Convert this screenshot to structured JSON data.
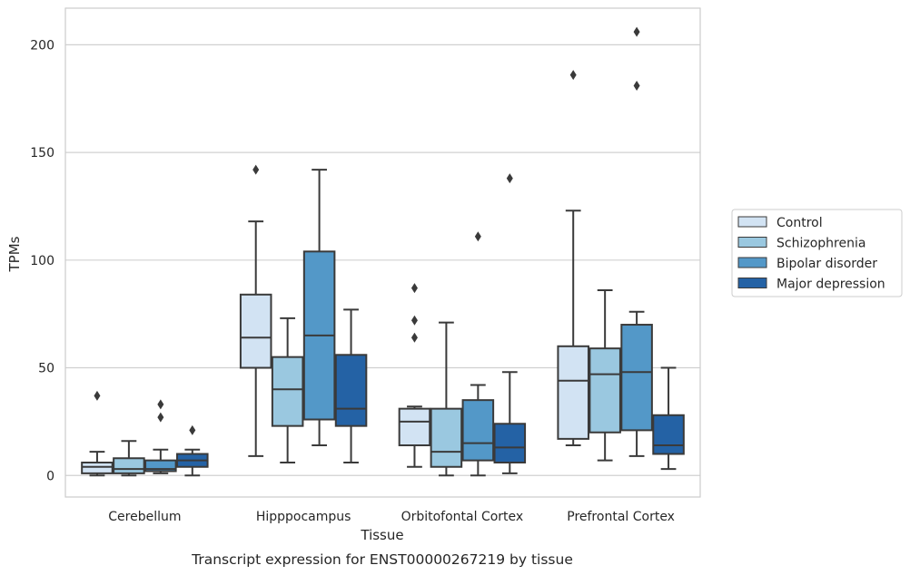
{
  "chart_data": {
    "type": "boxplot",
    "title": "",
    "caption": "Transcript expression for ENST00000267219 by tissue",
    "xlabel": "Tissue",
    "ylabel": "TPMs",
    "ylim": [
      -10,
      217
    ],
    "yticks": [
      0,
      50,
      100,
      150,
      200
    ],
    "grid": "horizontal",
    "legend_position": "right",
    "categories": [
      "Cerebellum",
      "Hipppocampus",
      "Orbitofontal Cortex",
      "Prefrontal Cortex"
    ],
    "series": [
      {
        "name": "Control",
        "color": "#d2e3f3",
        "boxes": [
          {
            "whisker_low": 0,
            "q1": 1,
            "median": 4,
            "q3": 6,
            "whisker_high": 11,
            "outliers": [
              37
            ]
          },
          {
            "whisker_low": 9,
            "q1": 50,
            "median": 64,
            "q3": 84,
            "whisker_high": 118,
            "outliers": [
              142
            ]
          },
          {
            "whisker_low": 4,
            "q1": 14,
            "median": 25,
            "q3": 31,
            "whisker_high": 32,
            "outliers": [
              87,
              72,
              64
            ]
          },
          {
            "whisker_low": 14,
            "q1": 17,
            "median": 44,
            "q3": 60,
            "whisker_high": 123,
            "outliers": [
              186
            ]
          }
        ]
      },
      {
        "name": "Schizophrenia",
        "color": "#9ac8e0",
        "boxes": [
          {
            "whisker_low": 0,
            "q1": 1,
            "median": 3,
            "q3": 8,
            "whisker_high": 16,
            "outliers": []
          },
          {
            "whisker_low": 6,
            "q1": 23,
            "median": 40,
            "q3": 55,
            "whisker_high": 73,
            "outliers": []
          },
          {
            "whisker_low": 0,
            "q1": 4,
            "median": 11,
            "q3": 31,
            "whisker_high": 71,
            "outliers": []
          },
          {
            "whisker_low": 7,
            "q1": 20,
            "median": 47,
            "q3": 59,
            "whisker_high": 86,
            "outliers": []
          }
        ]
      },
      {
        "name": "Bipolar disorder",
        "color": "#5398c8",
        "boxes": [
          {
            "whisker_low": 1,
            "q1": 2,
            "median": 3,
            "q3": 7,
            "whisker_high": 12,
            "outliers": [
              33,
              27
            ]
          },
          {
            "whisker_low": 14,
            "q1": 26,
            "median": 65,
            "q3": 104,
            "whisker_high": 142,
            "outliers": []
          },
          {
            "whisker_low": 0,
            "q1": 7,
            "median": 15,
            "q3": 35,
            "whisker_high": 42,
            "outliers": [
              111
            ]
          },
          {
            "whisker_low": 9,
            "q1": 21,
            "median": 48,
            "q3": 70,
            "whisker_high": 76,
            "outliers": [
              206,
              181
            ]
          }
        ]
      },
      {
        "name": "Major depression",
        "color": "#2462a5",
        "boxes": [
          {
            "whisker_low": 0,
            "q1": 4,
            "median": 7,
            "q3": 10,
            "whisker_high": 12,
            "outliers": [
              21
            ]
          },
          {
            "whisker_low": 6,
            "q1": 23,
            "median": 31,
            "q3": 56,
            "whisker_high": 77,
            "outliers": []
          },
          {
            "whisker_low": 1,
            "q1": 6,
            "median": 13,
            "q3": 24,
            "whisker_high": 48,
            "outliers": [
              138
            ]
          },
          {
            "whisker_low": 3,
            "q1": 10,
            "median": 14,
            "q3": 28,
            "whisker_high": 50,
            "outliers": []
          }
        ]
      }
    ]
  }
}
